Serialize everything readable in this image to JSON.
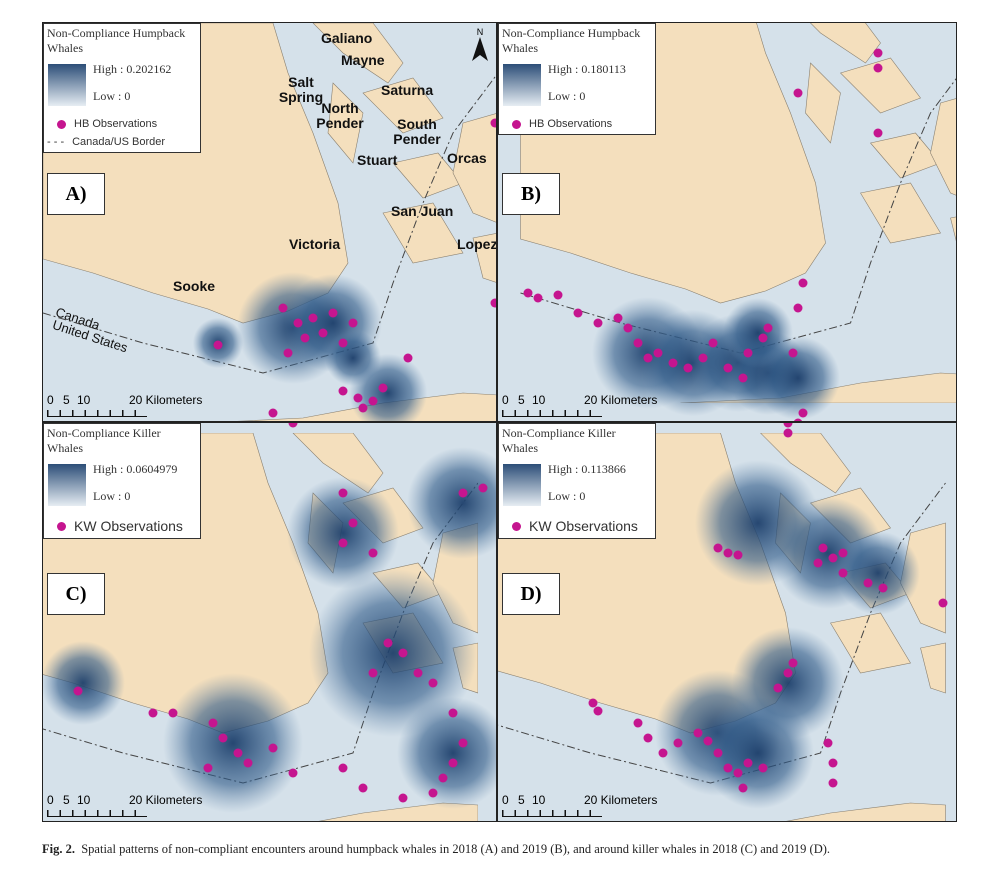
{
  "north": "N",
  "panels": [
    {
      "label": "A)",
      "legend": {
        "title": "Non-Compliance Humpback Whales",
        "high": "High : 0.202162",
        "low": "Low : 0",
        "observations": "HB Observations",
        "border": "Canada/US Border"
      },
      "places": [
        "Galiano",
        "Mayne",
        "Salt Spring",
        "North Pender",
        "Saturna",
        "South Pender",
        "Stuart",
        "Orcas",
        "San Juan",
        "Victoria",
        "Lopez",
        "Sooke",
        "Canada",
        "United States"
      ],
      "scale": [
        "0",
        "5",
        "10",
        "20 Kilometers"
      ]
    },
    {
      "label": "B)",
      "legend": {
        "title": "Non-Compliance Humpback Whales",
        "high": "High : 0.180113",
        "low": "Low : 0",
        "observations": "HB Observations"
      },
      "scale": [
        "0",
        "5",
        "10",
        "20 Kilometers"
      ]
    },
    {
      "label": "C)",
      "legend": {
        "title": "Non-Compliance Killer Whales",
        "high": "High : 0.0604979",
        "low": "Low : 0",
        "observations": "KW Observations"
      },
      "scale": [
        "0",
        "5",
        "10",
        "20 Kilometers"
      ]
    },
    {
      "label": "D)",
      "legend": {
        "title": "Non-Compliance Killer Whales",
        "high": "High : 0.113866",
        "low": "Low : 0",
        "observations": "KW Observations"
      },
      "scale": [
        "0",
        "5",
        "10",
        "20 Kilometers"
      ]
    }
  ],
  "caption": {
    "label": "Fig. 2.",
    "text": "Spatial patterns of non-compliant encounters around humpback whales in 2018 (A) and 2019 (B), and around killer whales in 2018 (C) and 2019 (D)."
  }
}
